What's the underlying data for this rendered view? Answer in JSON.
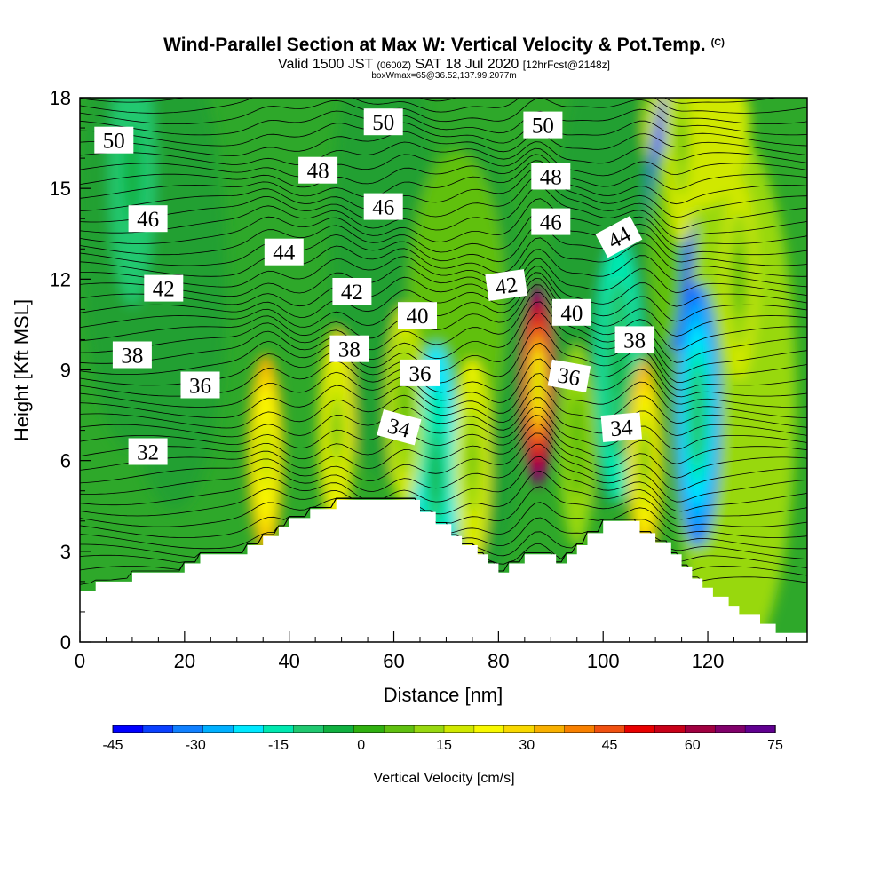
{
  "chart_data": {
    "type": "heatmap",
    "title": "Wind-Parallel Section at Max W: Vertical Velocity & Pot.Temp.",
    "title_mark": "(C)",
    "subtitle": {
      "pre": "Valid 1500 JST",
      "utc": "(0600Z)",
      "date": "SAT 18 Jul 2020",
      "fcst": "[12hrFcst@2148z]",
      "box": "boxWmax=65@36.52,137.99,2077m"
    },
    "xlabel": "Distance [nm]",
    "ylabel": "Height [Kft MSL]",
    "xlim": [
      0,
      139
    ],
    "ylim": [
      0,
      18
    ],
    "x_ticks": [
      0,
      20,
      40,
      60,
      80,
      100,
      120
    ],
    "y_ticks": [
      0,
      3,
      6,
      9,
      12,
      15,
      18
    ],
    "colorbar": {
      "label": "Vertical Velocity [cm/s]",
      "range": [
        -45,
        75
      ],
      "ticks": [
        "-45",
        "-30",
        "-15",
        "0",
        "15",
        "30",
        "45",
        "60",
        "75"
      ],
      "colors": [
        "#0000ff",
        "#0a40ff",
        "#1080ff",
        "#00b0ff",
        "#00e8ff",
        "#00e8b0",
        "#20c870",
        "#10b040",
        "#30b010",
        "#60c010",
        "#98d810",
        "#d0e800",
        "#f8f800",
        "#f8d800",
        "#f8b000",
        "#f88000",
        "#f05010",
        "#e80000",
        "#c80018",
        "#a00040",
        "#80006a",
        "#600090"
      ]
    },
    "terrain": [
      [
        0,
        1.7
      ],
      [
        3,
        1.7
      ],
      [
        3,
        2
      ],
      [
        10,
        2
      ],
      [
        10,
        2.3
      ],
      [
        20,
        2.3
      ],
      [
        20,
        2.6
      ],
      [
        23,
        2.6
      ],
      [
        23,
        2.9
      ],
      [
        32,
        2.9
      ],
      [
        32,
        3.2
      ],
      [
        35,
        3.2
      ],
      [
        35,
        3.5
      ],
      [
        38,
        3.5
      ],
      [
        38,
        3.8
      ],
      [
        40,
        3.8
      ],
      [
        40,
        4.1
      ],
      [
        44,
        4.1
      ],
      [
        44,
        4.4
      ],
      [
        49,
        4.4
      ],
      [
        49,
        4.7
      ],
      [
        65,
        4.7
      ],
      [
        65,
        4.3
      ],
      [
        68,
        4.3
      ],
      [
        68,
        3.9
      ],
      [
        71,
        3.9
      ],
      [
        71,
        3.5
      ],
      [
        73,
        3.5
      ],
      [
        73,
        3.2
      ],
      [
        76,
        3.2
      ],
      [
        76,
        2.9
      ],
      [
        78,
        2.9
      ],
      [
        78,
        2.6
      ],
      [
        80,
        2.6
      ],
      [
        80,
        2.3
      ],
      [
        82,
        2.3
      ],
      [
        82,
        2.6
      ],
      [
        85,
        2.6
      ],
      [
        85,
        2.9
      ],
      [
        91,
        2.9
      ],
      [
        91,
        2.6
      ],
      [
        93,
        2.6
      ],
      [
        93,
        2.9
      ],
      [
        95,
        2.9
      ],
      [
        95,
        3.2
      ],
      [
        97,
        3.2
      ],
      [
        97,
        3.6
      ],
      [
        100,
        3.6
      ],
      [
        100,
        4
      ],
      [
        107,
        4
      ],
      [
        107,
        3.6
      ],
      [
        110,
        3.6
      ],
      [
        110,
        3.3
      ],
      [
        113,
        3.3
      ],
      [
        113,
        2.9
      ],
      [
        115,
        2.9
      ],
      [
        115,
        2.5
      ],
      [
        117,
        2.5
      ],
      [
        117,
        2.1
      ],
      [
        119,
        2.1
      ],
      [
        119,
        1.8
      ],
      [
        121,
        1.8
      ],
      [
        121,
        1.5
      ],
      [
        124,
        1.5
      ],
      [
        124,
        1.2
      ],
      [
        126,
        1.2
      ],
      [
        126,
        0.9
      ],
      [
        130,
        0.9
      ],
      [
        130,
        0.6
      ],
      [
        133,
        0.6
      ],
      [
        133,
        0.3
      ],
      [
        139,
        0.3
      ]
    ],
    "updrafts": [
      {
        "x": 35.5,
        "y": 6.2,
        "w": 36
      },
      {
        "x": 49,
        "y": 7.0,
        "w": 28
      },
      {
        "x": 62,
        "y": 7.8,
        "w": 18
      },
      {
        "x": 75,
        "y": 6.0,
        "w": 22
      },
      {
        "x": 87.5,
        "y": 8.5,
        "w": 65
      },
      {
        "x": 95,
        "y": 6.5,
        "w": 14
      },
      {
        "x": 108,
        "y": 6.0,
        "w": 32
      },
      {
        "x": 112,
        "y": 13.0,
        "w": 8
      },
      {
        "x": 126,
        "y": 12.0,
        "w": 18
      },
      {
        "x": 115,
        "y": 16.5,
        "w": 20
      }
    ],
    "downdrafts": [
      {
        "x": 113,
        "y": 14.0,
        "w": -42
      },
      {
        "x": 118,
        "y": 7.5,
        "w": -30
      },
      {
        "x": 68,
        "y": 5.5,
        "w": -22
      },
      {
        "x": 103,
        "y": 9.0,
        "w": -15
      },
      {
        "x": 10,
        "y": 15.5,
        "w": -12
      }
    ],
    "theta_levels": [
      32,
      34,
      36,
      38,
      40,
      42,
      44,
      46,
      48,
      50
    ],
    "theta_labels": [
      {
        "text": "50",
        "x": 6.5,
        "y": 16.6,
        "rot": 0
      },
      {
        "text": "46",
        "x": 13,
        "y": 14.0,
        "rot": 0
      },
      {
        "text": "42",
        "x": 16,
        "y": 11.7,
        "rot": 0
      },
      {
        "text": "38",
        "x": 10,
        "y": 9.5,
        "rot": 0
      },
      {
        "text": "36",
        "x": 23,
        "y": 8.5,
        "rot": 0
      },
      {
        "text": "32",
        "x": 13,
        "y": 6.3,
        "rot": 0
      },
      {
        "text": "44",
        "x": 39,
        "y": 12.9,
        "rot": 0
      },
      {
        "text": "48",
        "x": 45.5,
        "y": 15.6,
        "rot": 0
      },
      {
        "text": "42",
        "x": 52,
        "y": 11.6,
        "rot": 0
      },
      {
        "text": "38",
        "x": 51.5,
        "y": 9.7,
        "rot": 0
      },
      {
        "text": "50",
        "x": 58,
        "y": 17.2,
        "rot": 0
      },
      {
        "text": "46",
        "x": 58,
        "y": 14.4,
        "rot": 0
      },
      {
        "text": "40",
        "x": 64.5,
        "y": 10.8,
        "rot": 0
      },
      {
        "text": "36",
        "x": 65,
        "y": 8.9,
        "rot": 0
      },
      {
        "text": "34",
        "x": 61,
        "y": 7.1,
        "rot": 15
      },
      {
        "text": "42",
        "x": 81.5,
        "y": 11.8,
        "rot": -8
      },
      {
        "text": "50",
        "x": 88.5,
        "y": 17.1,
        "rot": 0
      },
      {
        "text": "48",
        "x": 90,
        "y": 15.4,
        "rot": 0
      },
      {
        "text": "46",
        "x": 90,
        "y": 13.9,
        "rot": 0
      },
      {
        "text": "40",
        "x": 94,
        "y": 10.9,
        "rot": 0
      },
      {
        "text": "36",
        "x": 93.5,
        "y": 8.8,
        "rot": 10
      },
      {
        "text": "44",
        "x": 103,
        "y": 13.4,
        "rot": -28
      },
      {
        "text": "38",
        "x": 106,
        "y": 10.0,
        "rot": 0
      },
      {
        "text": "34",
        "x": 103.5,
        "y": 7.1,
        "rot": -5
      }
    ]
  }
}
